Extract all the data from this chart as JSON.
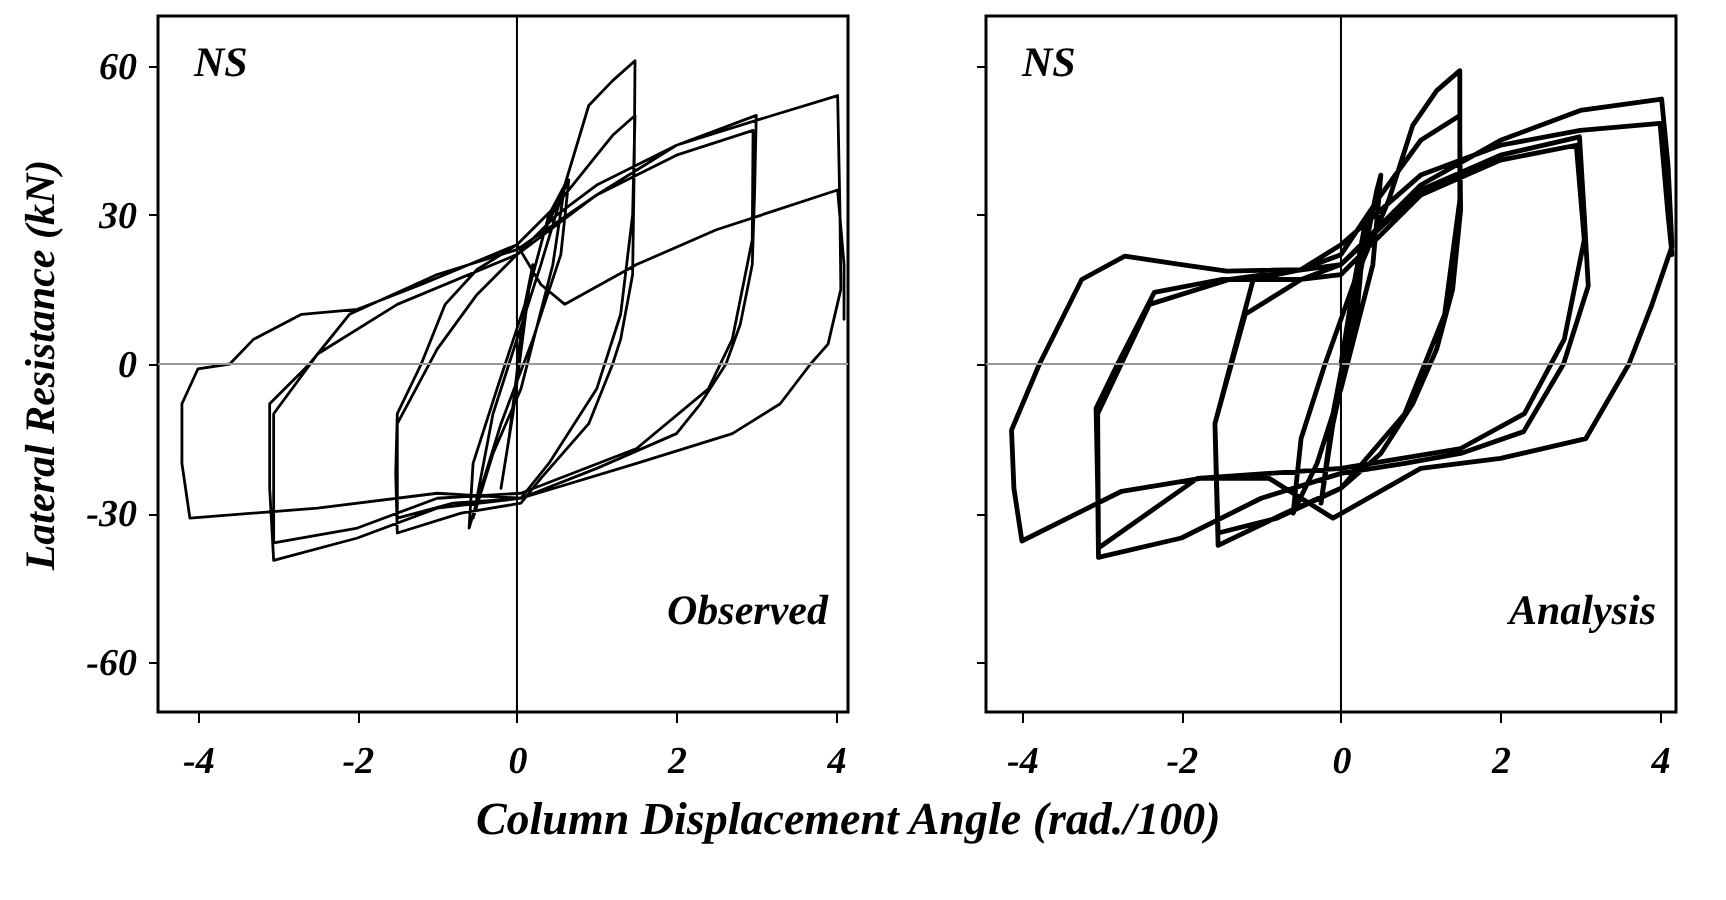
{
  "chart_data": [
    {
      "type": "line",
      "ylabel": "Lateral Resistance (kN)",
      "xlabel": "Column Displacement Angle (rad./100)",
      "annotations": [
        "NS",
        "Observed"
      ],
      "xlim": [
        -4.5,
        4.15
      ],
      "ylim": [
        -70,
        70
      ],
      "xticks": [
        -4,
        -2,
        0,
        2,
        4
      ],
      "yticks": [
        -60,
        -30,
        0,
        30,
        60
      ],
      "grid": false,
      "ref_lines": [
        {
          "axis": "y",
          "value": 0,
          "color": "#999999"
        },
        {
          "axis": "x",
          "value": 0,
          "color": "#000000"
        }
      ],
      "series": [
        {
          "color": "#000000",
          "x": [
            0,
            0.1,
            0.2,
            0.05,
            -0.1,
            -0.2,
            -0.05,
            0.15,
            0.35,
            0.65,
            0.55,
            0.2,
            -0.2,
            -0.45,
            -0.6,
            -0.55,
            -0.25,
            0.1,
            0.4,
            0.6,
            0.45,
            0.05,
            -0.3,
            -0.55,
            -0.3,
            0,
            0.3,
            0.6,
            0.9,
            1.2,
            1.48,
            1.47,
            1.45,
            1.3,
            1.2,
            0.9,
            0.3,
            0.05,
            -0.7,
            -1.5,
            -1.52,
            -1.5,
            -1.2,
            -0.9,
            -0.5,
            0,
            0.5,
            1.0,
            1.2,
            1.48,
            1.45,
            1.3,
            1.0,
            0.4,
            0.05,
            -0.8,
            -1.5,
            -1.5,
            -1,
            -0.5,
            0,
            0.5,
            1,
            2,
            2.5,
            3,
            2.98,
            2.95,
            2.8,
            2.62,
            2.3,
            2,
            1,
            0.05,
            -1,
            -2,
            -3.05,
            -3.1,
            -3.1,
            -2.6,
            -2.1,
            -1,
            0,
            1,
            2,
            2.96,
            2.95,
            2.7,
            2.4,
            1.5,
            0.05,
            -1,
            -2,
            -3.05,
            -3.05,
            -2.5,
            -1.5,
            0,
            1,
            2,
            3,
            4.02,
            4.05,
            4.06,
            3.9,
            3.68,
            3.3,
            2.7,
            1.5,
            0.05,
            -1,
            -2.5,
            -4.1,
            -4.2,
            -4.2,
            -4,
            -3.6,
            -3.3,
            -2.7,
            -2,
            -1.2,
            0,
            0.3,
            0.6,
            1.5,
            2.5,
            4.02,
            4.1,
            4.1
          ],
          "values": [
            0,
            12,
            20,
            5,
            -15,
            -25,
            -10,
            15,
            27,
            37,
            22,
            5,
            -12,
            -25,
            -33,
            -20,
            -5,
            12,
            30,
            36,
            20,
            -5,
            -18,
            -31,
            -10,
            5,
            20,
            36,
            52,
            57,
            61,
            40,
            18,
            5,
            0,
            -12,
            -23,
            -28,
            -30,
            -34,
            -22,
            -10,
            0,
            12,
            19,
            24,
            32,
            42,
            46,
            50,
            30,
            10,
            -5,
            -20,
            -27,
            -28,
            -31,
            -12,
            3,
            14,
            22,
            30,
            36,
            44,
            47,
            50,
            35,
            20,
            8,
            0,
            -8,
            -14,
            -21,
            -27,
            -29,
            -35,
            -39.5,
            -25,
            -8,
            0,
            10,
            18,
            23,
            34,
            42,
            47,
            25,
            5,
            -5,
            -17,
            -26,
            -27,
            -33,
            -36,
            -10,
            2,
            12,
            22,
            34,
            44,
            49,
            54,
            30,
            15,
            4,
            0,
            -8,
            -14,
            -20,
            -27,
            -26,
            -29,
            -31,
            -20,
            -8,
            -1,
            0,
            5,
            10,
            11,
            16,
            24,
            16,
            12,
            20,
            27,
            35,
            20,
            9
          ]
        }
      ]
    },
    {
      "type": "line",
      "annotations": [
        "NS",
        "Analysis"
      ],
      "xlim": [
        -4.45,
        4.2
      ],
      "ylim": [
        -70,
        70
      ],
      "xticks": [
        -4,
        -2,
        0,
        2,
        4
      ],
      "yticks": [
        -60,
        -30,
        0,
        30,
        60
      ],
      "tick_labels": "x",
      "grid": false,
      "ref_lines": [
        {
          "axis": "y",
          "value": 0,
          "color": "#999999"
        },
        {
          "axis": "x",
          "value": 0,
          "color": "#000000"
        }
      ],
      "series": [
        {
          "color": "#000000",
          "x": [
            0,
            0.15,
            0.3,
            0.2,
            -0.1,
            -0.25,
            -0.1,
            0.2,
            0.45,
            0.5,
            0.4,
            0,
            -0.3,
            -0.6,
            -0.5,
            -0.2,
            0.2,
            0.6,
            0.9,
            1.2,
            1.49,
            1.49,
            1.5,
            1.4,
            1.2,
            0.9,
            0.5,
            0,
            -0.7,
            -1.54,
            -1.56,
            -1.58,
            -1.3,
            -1.1,
            -0.5,
            0,
            0.5,
            1,
            1.49,
            1.49,
            1.3,
            0.8,
            0,
            -0.8,
            -1.54,
            -1.58,
            -1.2,
            -0.5,
            0,
            1,
            2,
            2.99,
            3.05,
            3.1,
            2.79,
            2.29,
            1.5,
            0.8,
            0,
            -1,
            -2,
            -3.04,
            -3.05,
            -3.07,
            -2.8,
            -2.34,
            -1.5,
            -0.5,
            0,
            1,
            2,
            2.95,
            3.05,
            2.8,
            2.3,
            1.5,
            0,
            -1.8,
            -3.04,
            -3.05,
            -2.4,
            -1.4,
            0,
            1,
            2,
            3,
            4.02,
            4.1,
            4.15,
            3.9,
            3.61,
            3.07,
            2,
            1,
            -0.1,
            -0.9,
            -1.76,
            -2.75,
            -4,
            -4.1,
            -4.13,
            -3.78,
            -3.25,
            -2.71,
            -2,
            -1.43,
            -0.5,
            0,
            1,
            2,
            3,
            4,
            4.1,
            4.15
          ],
          "values": [
            0,
            15,
            28,
            10,
            -12,
            -28,
            -10,
            15,
            35,
            38,
            20,
            -5,
            -20,
            -30,
            -15,
            0,
            18,
            33,
            48,
            55,
            59,
            45,
            31,
            15,
            3,
            -8,
            -18,
            -25,
            -30,
            -36.5,
            -25,
            -12,
            5,
            17,
            19,
            22,
            34,
            45,
            50,
            33,
            10,
            -10,
            -25,
            -31,
            -34,
            -12,
            10,
            17,
            20,
            35,
            42,
            45.7,
            30,
            15.7,
            0,
            -13.6,
            -18,
            -20,
            -22,
            -27,
            -35,
            -38.9,
            -25,
            -8.9,
            0,
            14.4,
            17,
            17,
            18,
            34,
            41,
            44,
            25,
            5,
            -10,
            -17,
            -21,
            -23,
            -37,
            -10,
            12,
            17,
            20,
            36,
            45,
            51,
            53.3,
            40,
            23.7,
            12,
            0,
            -15,
            -19,
            -21,
            -31,
            -23,
            -23,
            -25.6,
            -35.6,
            -25,
            -13.3,
            0,
            17,
            21.7,
            20,
            18.7,
            19,
            24,
            38,
            44,
            47,
            48.4,
            30,
            22
          ]
        }
      ]
    }
  ]
}
